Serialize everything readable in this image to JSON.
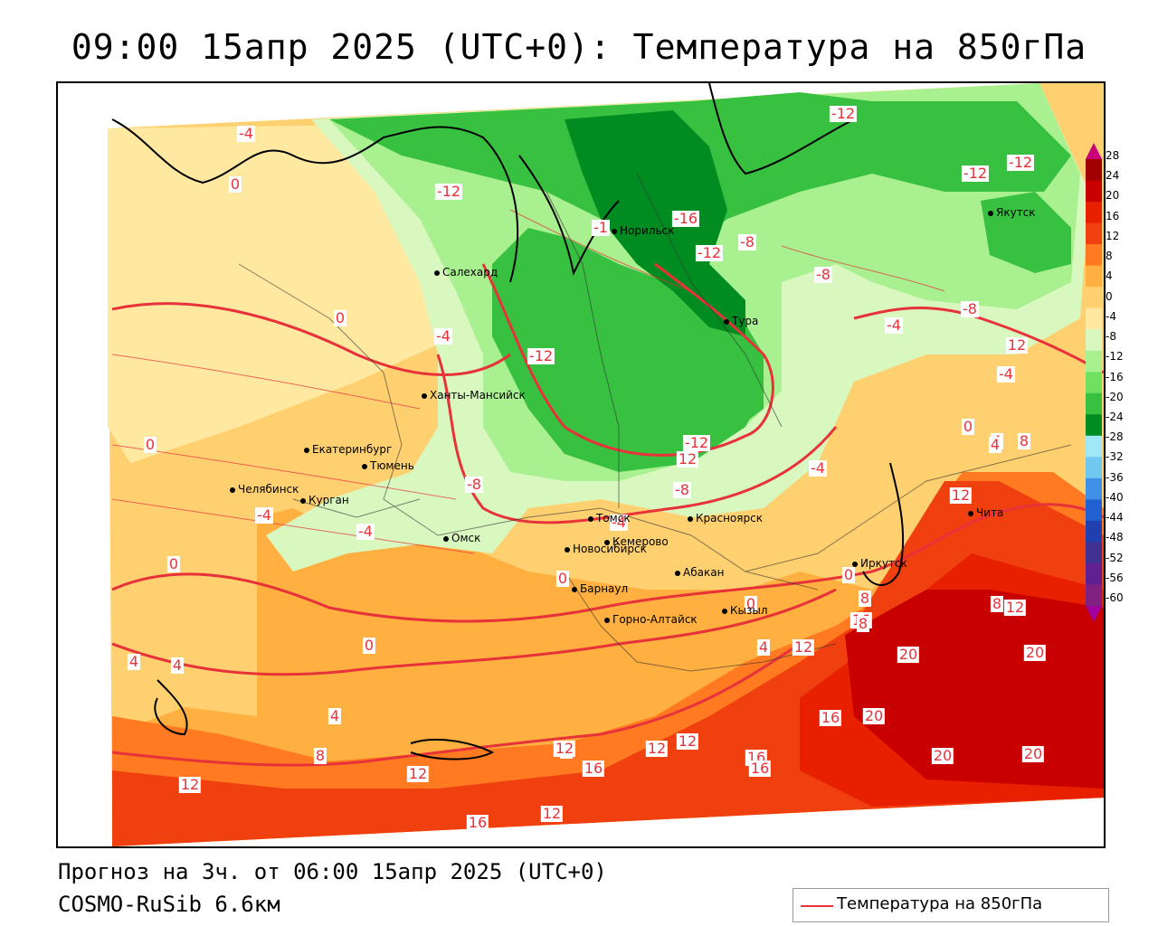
{
  "title": "09:00 15апр 2025 (UTC+0): Температура на 850гПа",
  "footer": {
    "forecast": "Прогноз на 3ч. от 06:00 15апр 2025 (UTC+0)",
    "model": "COSMO-RuSib 6.6км"
  },
  "legend": {
    "label": "Температура на 850гПа",
    "color": "#e8323a"
  },
  "scale": {
    "ticks": [
      "28",
      "24",
      "20",
      "16",
      "12",
      "8",
      "4",
      "0",
      "-4",
      "-8",
      "-12",
      "-16",
      "-20",
      "-24",
      "-28",
      "-32",
      "-36",
      "-40",
      "-44",
      "-48",
      "-52",
      "-56",
      "-60"
    ],
    "colors": [
      "#c8007a",
      "#a00000",
      "#c80000",
      "#e82000",
      "#f04010",
      "#ff7a20",
      "#ffb040",
      "#ffd070",
      "#ffe8a0",
      "#d8f8c0",
      "#a8f090",
      "#70e060",
      "#38c040",
      "#008c20",
      "#a0e8f8",
      "#70c8f0",
      "#4090e8",
      "#2060d0",
      "#2040b0",
      "#403090",
      "#602090",
      "#802080",
      "#a000a0"
    ]
  },
  "cities": [
    {
      "name": "Норильск"
    },
    {
      "name": "Якутск"
    },
    {
      "name": "Салехард"
    },
    {
      "name": "Тура"
    },
    {
      "name": "Ханты-Мансийск"
    },
    {
      "name": "Екатеринбург"
    },
    {
      "name": "Тюмень"
    },
    {
      "name": "Челябинск"
    },
    {
      "name": "Курган"
    },
    {
      "name": "Томск"
    },
    {
      "name": "Красноярск"
    },
    {
      "name": "Омск"
    },
    {
      "name": "Новосибирск"
    },
    {
      "name": "Кемерово"
    },
    {
      "name": "Абакан"
    },
    {
      "name": "Иркутск"
    },
    {
      "name": "Чита"
    },
    {
      "name": "Барнаул"
    },
    {
      "name": "Горно-Алтайск"
    },
    {
      "name": "Кызыл"
    }
  ],
  "contour_labels": [
    "-4",
    "0",
    "-12",
    "-1",
    "-16",
    "-12",
    "-8",
    "-12",
    "-12",
    "-12",
    "-8",
    "-8",
    "-4",
    "-4",
    "-4",
    "0",
    "4",
    "-4",
    "-8",
    "-12",
    "-12",
    "-8",
    "-4",
    "-4",
    "-4",
    "0",
    "0",
    "0",
    "0",
    "4",
    "4",
    "0",
    "4",
    "8",
    "12",
    "12",
    "12",
    "16",
    "16",
    "16",
    "16",
    "12",
    "12",
    "20",
    "20",
    "20",
    "20",
    "20",
    "12",
    "16",
    "12",
    "8",
    "4",
    "8",
    "12",
    "12",
    "8",
    "4",
    "4",
    "12",
    "16",
    "12",
    "8",
    "0",
    "0"
  ]
}
